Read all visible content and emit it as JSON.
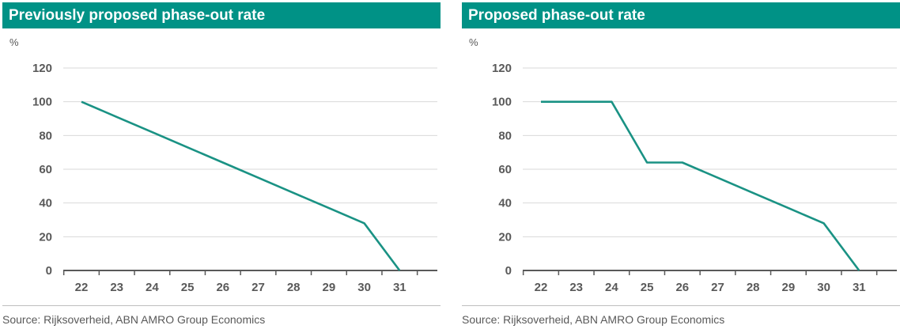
{
  "colors": {
    "accent": "#009286",
    "line": "#1a9284",
    "grid": "#d9d9d9",
    "axis": "#595959"
  },
  "chart_data": [
    {
      "type": "line",
      "title": "Previously proposed phase-out rate",
      "ylabel": "%",
      "xlabel": "",
      "categories": [
        "22",
        "23",
        "24",
        "25",
        "26",
        "27",
        "28",
        "29",
        "30",
        "31"
      ],
      "yticks": [
        0,
        20,
        40,
        60,
        80,
        100,
        120
      ],
      "ylim": [
        0,
        120
      ],
      "grid": true,
      "series": [
        {
          "values": [
            100,
            91,
            82,
            73,
            64,
            55,
            46,
            37,
            28,
            0
          ]
        }
      ],
      "source": "Source: Rijksoverheid, ABN AMRO Group Economics"
    },
    {
      "type": "line",
      "title": "Proposed phase-out rate",
      "ylabel": "%",
      "xlabel": "",
      "categories": [
        "22",
        "23",
        "24",
        "25",
        "26",
        "27",
        "28",
        "29",
        "30",
        "31"
      ],
      "yticks": [
        0,
        20,
        40,
        60,
        80,
        100,
        120
      ],
      "ylim": [
        0,
        120
      ],
      "grid": true,
      "series": [
        {
          "values": [
            100,
            100,
            100,
            64,
            64,
            55,
            46,
            37,
            28,
            0
          ]
        }
      ],
      "source": "Source: Rijksoverheid, ABN AMRO Group Economics"
    }
  ]
}
